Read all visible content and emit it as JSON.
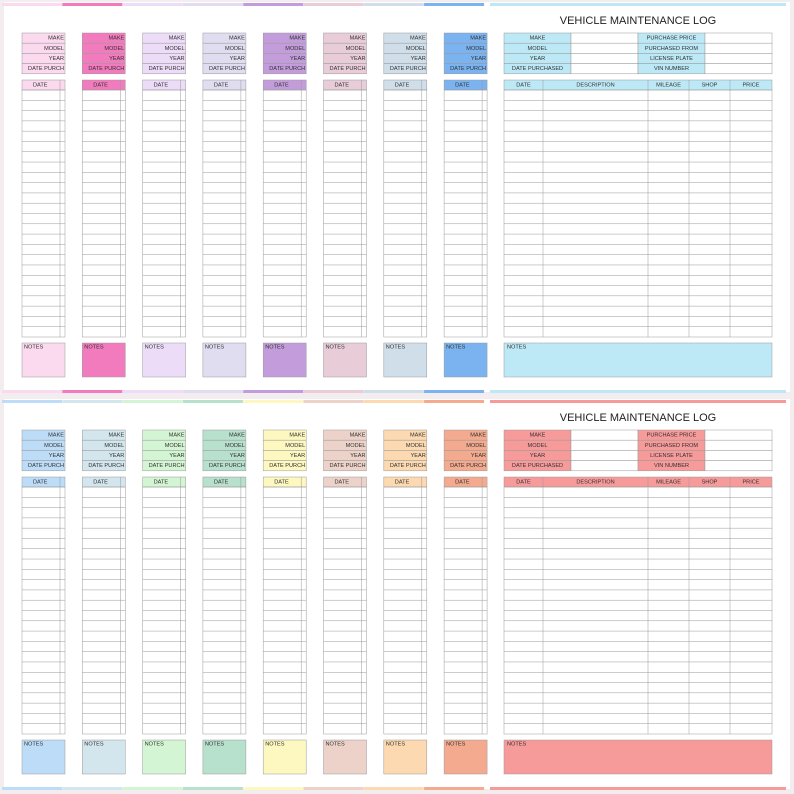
{
  "panels": [
    {
      "tabs": [
        {
          "color": "#fbd9ee",
          "fields": [
            "MAKE",
            "MODEL",
            "YEAR",
            "DATE PURCH"
          ],
          "date": "DATE",
          "notes": "NOTES"
        },
        {
          "color": "#f27bbd",
          "fields": [
            "MAKE",
            "MODEL",
            "YEAR",
            "DATE PURCH"
          ],
          "date": "DATE",
          "notes": "NOTES"
        },
        {
          "color": "#ecdcf7",
          "fields": [
            "MAKE",
            "MODEL",
            "YEAR",
            "DATE PURCH"
          ],
          "date": "DATE",
          "notes": "NOTES"
        },
        {
          "color": "#e0ddf0",
          "fields": [
            "MAKE",
            "MODEL",
            "YEAR",
            "DATE PURCH"
          ],
          "date": "DATE",
          "notes": "NOTES"
        },
        {
          "color": "#c39ddb",
          "fields": [
            "MAKE",
            "MODEL",
            "YEAR",
            "DATE PURCH"
          ],
          "date": "DATE",
          "notes": "NOTES"
        },
        {
          "color": "#e8cdd9",
          "fields": [
            "MAKE",
            "MODEL",
            "YEAR",
            "DATE PURCH"
          ],
          "date": "DATE",
          "notes": "NOTES"
        },
        {
          "color": "#d0deea",
          "fields": [
            "MAKE",
            "MODEL",
            "YEAR",
            "DATE PURCH"
          ],
          "date": "DATE",
          "notes": "NOTES"
        },
        {
          "color": "#7ab3f0",
          "fields": [
            "MAKE",
            "MODEL",
            "YEAR",
            "DATE PURCH"
          ],
          "date": "DATE",
          "notes": "NOTES"
        }
      ],
      "main": {
        "color": "#bde9f7",
        "title": "VEHICLE MAINTENANCE LOG",
        "left_fields": [
          "MAKE",
          "MODEL",
          "YEAR",
          "DATE PURCHASED"
        ],
        "right_fields": [
          "PURCHASE PRICE",
          "PURCHASED FROM",
          "LICENSE PLATE",
          "VIN NUMBER"
        ],
        "columns": [
          "DATE",
          "DESCRIPTION",
          "MILEAGE",
          "SHOP",
          "PRICE"
        ],
        "notes": "NOTES"
      }
    },
    {
      "tabs": [
        {
          "color": "#bcdcf7",
          "fields": [
            "MAKE",
            "MODEL",
            "YEAR",
            "DATE PURCH"
          ],
          "date": "DATE",
          "notes": "NOTES"
        },
        {
          "color": "#d3e6ee",
          "fields": [
            "MAKE",
            "MODEL",
            "YEAR",
            "DATE PURCH"
          ],
          "date": "DATE",
          "notes": "NOTES"
        },
        {
          "color": "#d3f5d3",
          "fields": [
            "MAKE",
            "MODEL",
            "YEAR",
            "DATE PURCH"
          ],
          "date": "DATE",
          "notes": "NOTES"
        },
        {
          "color": "#b7e0cd",
          "fields": [
            "MAKE",
            "MODEL",
            "YEAR",
            "DATE PURCH"
          ],
          "date": "DATE",
          "notes": "NOTES"
        },
        {
          "color": "#fdf7c0",
          "fields": [
            "MAKE",
            "MODEL",
            "YEAR",
            "DATE PURCH"
          ],
          "date": "DATE",
          "notes": "NOTES"
        },
        {
          "color": "#ecd2c8",
          "fields": [
            "MAKE",
            "MODEL",
            "YEAR",
            "DATE PURCH"
          ],
          "date": "DATE",
          "notes": "NOTES"
        },
        {
          "color": "#fcd9b0",
          "fields": [
            "MAKE",
            "MODEL",
            "YEAR",
            "DATE PURCH"
          ],
          "date": "DATE",
          "notes": "NOTES"
        },
        {
          "color": "#f4aa8e",
          "fields": [
            "MAKE",
            "MODEL",
            "YEAR",
            "DATE PURCH"
          ],
          "date": "DATE",
          "notes": "NOTES"
        }
      ],
      "main": {
        "color": "#f79a9a",
        "title": "VEHICLE MAINTENANCE LOG",
        "left_fields": [
          "MAKE",
          "MODEL",
          "YEAR",
          "DATE PURCHASED"
        ],
        "right_fields": [
          "PURCHASE PRICE",
          "PURCHASED FROM",
          "LICENSE PLATE",
          "VIN NUMBER"
        ],
        "columns": [
          "DATE",
          "DESCRIPTION",
          "MILEAGE",
          "SHOP",
          "PRICE"
        ],
        "notes": "NOTES"
      }
    }
  ]
}
